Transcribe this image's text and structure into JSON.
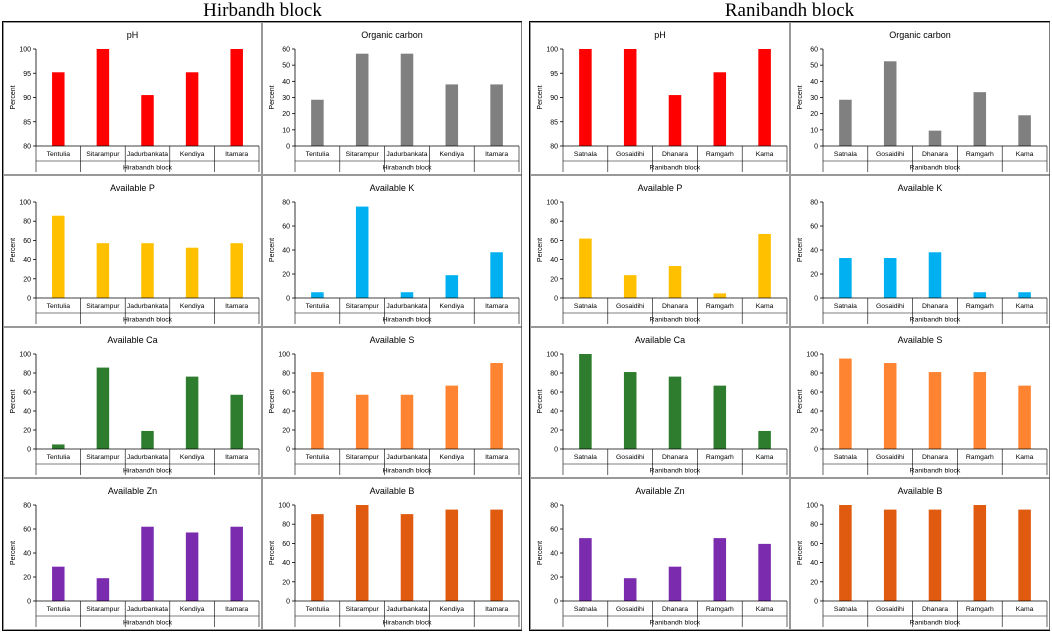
{
  "block_titles": {
    "left": "Hirbandh block",
    "right": "Ranibandh block"
  },
  "colors": {
    "red": "#ff0000",
    "gray": "#808080",
    "yellow": "#ffc000",
    "blue": "#00b0f0",
    "green": "#2e7d2e",
    "orange": "#ff8432",
    "purple": "#7b2bae",
    "darkorange": "#e05a10"
  },
  "chart_data": [
    {
      "type": "bar",
      "block": "left",
      "title": "pH",
      "ylabel": "Percent",
      "xlabel": "Hirabandh block",
      "categories": [
        "Tentulia",
        "Sitarampur",
        "Jadurbankata",
        "Kendiya",
        "Itamara"
      ],
      "values": [
        95.2,
        100,
        90.5,
        95.2,
        100
      ],
      "ylim": [
        80,
        100
      ],
      "yticks": [
        80,
        85,
        90,
        95,
        100
      ],
      "color": "red"
    },
    {
      "type": "bar",
      "block": "left",
      "title": "Organic carbon",
      "ylabel": "Percent",
      "xlabel": "Hirabandh block",
      "categories": [
        "Tentulia",
        "Sitarampur",
        "Jadurbankata",
        "Kendiya",
        "Itamara"
      ],
      "values": [
        28.6,
        57.1,
        57.1,
        38.1,
        38.1
      ],
      "ylim": [
        0,
        60
      ],
      "yticks": [
        0,
        10,
        20,
        30,
        40,
        50,
        60
      ],
      "color": "gray"
    },
    {
      "type": "bar",
      "block": "right",
      "title": "pH",
      "ylabel": "Percent",
      "xlabel": "Ranibandh block",
      "categories": [
        "Satnala",
        "Gosaidihi",
        "Dhanara",
        "Ramgarh",
        "Kama"
      ],
      "values": [
        100,
        100,
        90.5,
        95.2,
        100
      ],
      "ylim": [
        80,
        100
      ],
      "yticks": [
        80,
        85,
        90,
        95,
        100
      ],
      "color": "red"
    },
    {
      "type": "bar",
      "block": "right",
      "title": "Organic carbon",
      "ylabel": "Percent",
      "xlabel": "Ranibandh block",
      "categories": [
        "Satnala",
        "Gosaidihi",
        "Dhanara",
        "Ramgarh",
        "Kama"
      ],
      "values": [
        28.6,
        52.4,
        9.5,
        33.3,
        19
      ],
      "ylim": [
        0,
        60
      ],
      "yticks": [
        0,
        10,
        20,
        30,
        40,
        50,
        60
      ],
      "color": "gray"
    },
    {
      "type": "bar",
      "block": "left",
      "title": "Available P",
      "ylabel": "Percent",
      "xlabel": "Hirabandh block",
      "categories": [
        "Tentulia",
        "Sitarampur",
        "Jadurbankata",
        "Kendiya",
        "Itamara"
      ],
      "values": [
        85.7,
        57.1,
        57.1,
        52.4,
        57.1
      ],
      "ylim": [
        0,
        100
      ],
      "yticks": [
        0,
        20,
        40,
        60,
        80,
        100
      ],
      "color": "yellow"
    },
    {
      "type": "bar",
      "block": "left",
      "title": "Available K",
      "ylabel": "Percent",
      "xlabel": "Hirabandh block",
      "categories": [
        "Tentulia",
        "Sitarampur",
        "Jadurbankata",
        "Kendiya",
        "Itamara"
      ],
      "values": [
        4.8,
        76.2,
        4.8,
        19,
        38.1
      ],
      "ylim": [
        0,
        80
      ],
      "yticks": [
        0,
        20,
        40,
        60,
        80
      ],
      "color": "blue"
    },
    {
      "type": "bar",
      "block": "right",
      "title": "Available P",
      "ylabel": "Percent",
      "xlabel": "Ranibandh block",
      "categories": [
        "Satnala",
        "Gosaidihi",
        "Dhanara",
        "Ramgarh",
        "Kama"
      ],
      "values": [
        61.9,
        23.8,
        33.3,
        4.8,
        66.7
      ],
      "ylim": [
        0,
        100
      ],
      "yticks": [
        0,
        20,
        40,
        60,
        80,
        100
      ],
      "color": "yellow"
    },
    {
      "type": "bar",
      "block": "right",
      "title": "Available K",
      "ylabel": "Percent",
      "xlabel": "Ranibandh block",
      "categories": [
        "Satnala",
        "Gosaidihi",
        "Dhanara",
        "Ramgarh",
        "Kama"
      ],
      "values": [
        33.3,
        33.3,
        38.1,
        4.8,
        4.8
      ],
      "ylim": [
        0,
        80
      ],
      "yticks": [
        0,
        20,
        40,
        60,
        80
      ],
      "color": "blue"
    },
    {
      "type": "bar",
      "block": "left",
      "title": "Available Ca",
      "ylabel": "Percent",
      "xlabel": "Hirabandh block",
      "categories": [
        "Tentulia",
        "Sitarampur",
        "Jadurbankata",
        "Kendiya",
        "Itamara"
      ],
      "values": [
        4.8,
        85.7,
        19,
        76.2,
        57.1
      ],
      "ylim": [
        0,
        100
      ],
      "yticks": [
        0,
        20,
        40,
        60,
        80,
        100
      ],
      "color": "green"
    },
    {
      "type": "bar",
      "block": "left",
      "title": "Available S",
      "ylabel": "Percent",
      "xlabel": "Hirabandh block",
      "categories": [
        "Tentulia",
        "Sitarampur",
        "Jadurbankata",
        "Kendiya",
        "Itamara"
      ],
      "values": [
        81,
        57.1,
        57.1,
        66.7,
        90.5
      ],
      "ylim": [
        0,
        100
      ],
      "yticks": [
        0,
        20,
        40,
        60,
        80,
        100
      ],
      "color": "orange"
    },
    {
      "type": "bar",
      "block": "right",
      "title": "Available Ca",
      "ylabel": "Percent",
      "xlabel": "Ranibandh block",
      "categories": [
        "Satnala",
        "Gosaidihi",
        "Dhanara",
        "Ramgarh",
        "Kama"
      ],
      "values": [
        100,
        81,
        76.2,
        66.7,
        19
      ],
      "ylim": [
        0,
        100
      ],
      "yticks": [
        0,
        20,
        40,
        60,
        80,
        100
      ],
      "color": "green"
    },
    {
      "type": "bar",
      "block": "right",
      "title": "Available S",
      "ylabel": "Percent",
      "xlabel": "Ranibandh block",
      "categories": [
        "Satnala",
        "Gosaidihi",
        "Dhanara",
        "Ramgarh",
        "Kama"
      ],
      "values": [
        95.2,
        90.5,
        81,
        81,
        66.7
      ],
      "ylim": [
        0,
        100
      ],
      "yticks": [
        0,
        20,
        40,
        60,
        80,
        100
      ],
      "color": "orange"
    },
    {
      "type": "bar",
      "block": "left",
      "title": "Available Zn",
      "ylabel": "Percent",
      "xlabel": "Hirabandh block",
      "categories": [
        "Tentulia",
        "Sitarampur",
        "Jadurbankata",
        "Kendiya",
        "Itamara"
      ],
      "values": [
        28.6,
        19,
        61.9,
        57.1,
        61.9
      ],
      "ylim": [
        0,
        80
      ],
      "yticks": [
        0,
        20,
        40,
        60,
        80
      ],
      "color": "purple"
    },
    {
      "type": "bar",
      "block": "left",
      "title": "Available B",
      "ylabel": "Percent",
      "xlabel": "Hirabandh block",
      "categories": [
        "Tentulia",
        "Sitarampur",
        "Jadurbankata",
        "Kendiya",
        "Itamara"
      ],
      "values": [
        90.5,
        100,
        90.5,
        95.2,
        95.2
      ],
      "ylim": [
        0,
        100
      ],
      "yticks": [
        0,
        20,
        40,
        60,
        80,
        100
      ],
      "color": "darkorange"
    },
    {
      "type": "bar",
      "block": "right",
      "title": "Available Zn",
      "ylabel": "Percent",
      "xlabel": "Ranibandh block",
      "categories": [
        "Satnala",
        "Gosaidihi",
        "Dhanara",
        "Ramgarh",
        "Kama"
      ],
      "values": [
        52.4,
        19,
        28.6,
        52.4,
        47.6
      ],
      "ylim": [
        0,
        80
      ],
      "yticks": [
        0,
        20,
        40,
        60,
        80
      ],
      "color": "purple"
    },
    {
      "type": "bar",
      "block": "right",
      "title": "Available B",
      "ylabel": "Percent",
      "xlabel": "Ranibandh block",
      "categories": [
        "Satnala",
        "Gosaidihi",
        "Dhanara",
        "Ramgarh",
        "Kama"
      ],
      "values": [
        100,
        95.2,
        95.2,
        100,
        95.2
      ],
      "ylim": [
        0,
        100
      ],
      "yticks": [
        0,
        20,
        40,
        60,
        80,
        100
      ],
      "color": "darkorange"
    }
  ]
}
